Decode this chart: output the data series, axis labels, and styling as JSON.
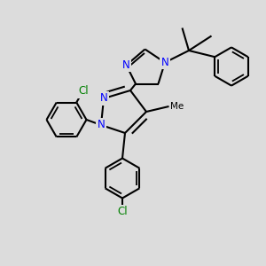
{
  "bg_color": "#dcdcdc",
  "bond_color": "#000000",
  "n_color": "#0000ff",
  "cl_color": "#008000",
  "lw": 1.5,
  "figsize": [
    3.0,
    3.0
  ],
  "dpi": 100,
  "xlim": [
    0,
    10
  ],
  "ylim": [
    0,
    10
  ]
}
